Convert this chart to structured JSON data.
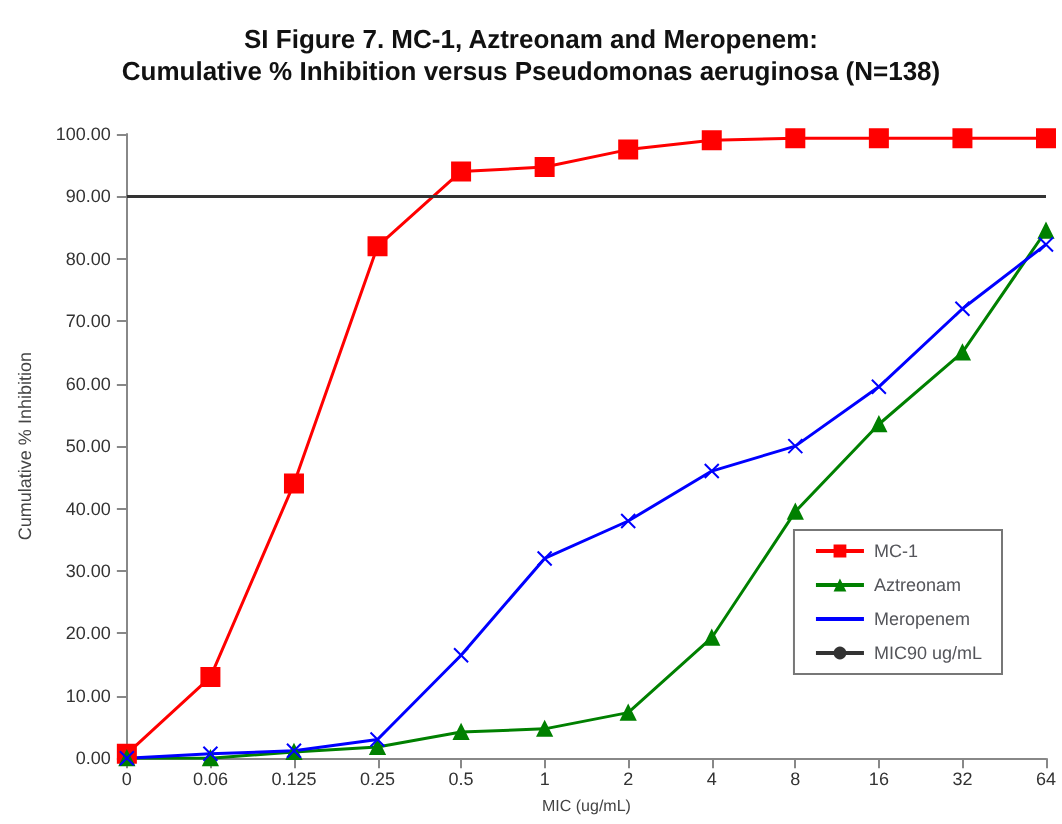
{
  "chart_data": {
    "type": "line",
    "title": "SI Figure 7. MC-1, Aztreonam and Meropenem:",
    "subtitle": "Cumulative % Inhibition versus Pseudomonas aeruginosa (N=138)",
    "xlabel": "MIC (ug/mL)",
    "ylabel": "Cumulative % Inhibition",
    "categories": [
      "0",
      "0.06",
      "0.125",
      "0.25",
      "0.5",
      "1",
      "2",
      "4",
      "8",
      "16",
      "32",
      "64"
    ],
    "series": [
      {
        "name": "MC-1",
        "color": "#ff0000",
        "marker": "square",
        "values": [
          0.7,
          13,
          44,
          82,
          94,
          94.7,
          97.5,
          99,
          99.3,
          99.3,
          99.3,
          99.3
        ]
      },
      {
        "name": "Aztreonam",
        "color": "#008000",
        "marker": "triangle",
        "values": [
          0,
          0,
          1,
          1.8,
          4.2,
          4.7,
          7.3,
          19.3,
          39.5,
          53.5,
          65,
          84.5
        ]
      },
      {
        "name": "Meropenem",
        "color": "#0000ff",
        "marker": "cross",
        "values": [
          0,
          0.7,
          1.2,
          3,
          16.5,
          32,
          38,
          46,
          50,
          59.5,
          72,
          82.3
        ]
      },
      {
        "name": "MIC90 ug/mL",
        "color": "#333333",
        "marker": "none",
        "values": [
          90,
          90,
          90,
          90,
          90,
          90,
          90,
          90,
          90,
          90,
          90,
          90
        ]
      }
    ],
    "ylim": [
      0,
      100
    ],
    "yticks": [
      {
        "value": 0,
        "label": "0.00"
      },
      {
        "value": 10,
        "label": "10.00"
      },
      {
        "value": 20,
        "label": "20.00"
      },
      {
        "value": 30,
        "label": "30.00"
      },
      {
        "value": 40,
        "label": "40.00"
      },
      {
        "value": 50,
        "label": "50.00"
      },
      {
        "value": 60,
        "label": "60.00"
      },
      {
        "value": 70,
        "label": "70.00"
      },
      {
        "value": 80,
        "label": "80.00"
      },
      {
        "value": 90,
        "label": "90.00"
      },
      {
        "value": 100,
        "label": "100.00"
      }
    ],
    "grid": false,
    "legend": "bottom right"
  }
}
